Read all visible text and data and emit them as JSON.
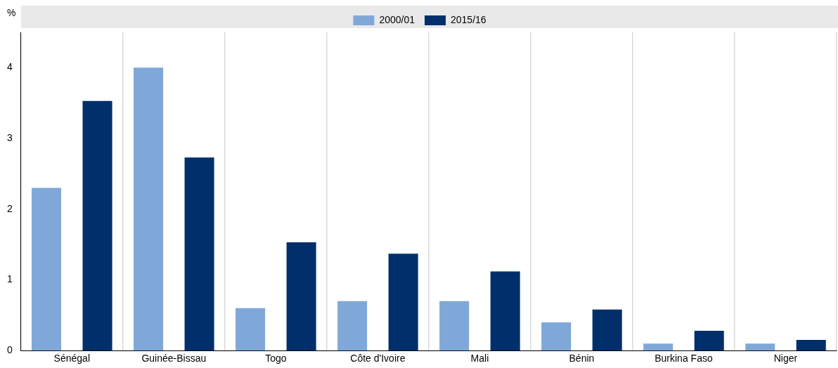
{
  "chart_data": {
    "type": "bar",
    "ylabel": "%",
    "categories": [
      "Sénégal",
      "Guinée-Bissau",
      "Togo",
      "Côte d'Ivoire",
      "Mali",
      "Bénin",
      "Burkina Faso",
      "Niger"
    ],
    "series": [
      {
        "name": "2000/01",
        "color": "#7fa8d9",
        "values": [
          2.3,
          4.0,
          0.6,
          0.7,
          0.7,
          0.4,
          0.1,
          0.1
        ]
      },
      {
        "name": "2015/16",
        "color": "#002f6c",
        "values": [
          3.53,
          2.73,
          1.53,
          1.37,
          1.12,
          0.58,
          0.28,
          0.15
        ]
      }
    ],
    "ylim": [
      0,
      4.5
    ],
    "yticks": [
      0,
      1,
      2,
      3,
      4
    ],
    "grid": "x",
    "legend": "top"
  }
}
